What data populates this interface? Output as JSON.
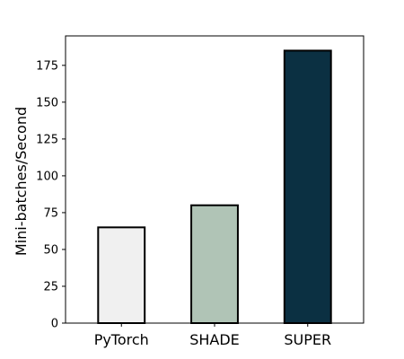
{
  "chart_data": {
    "type": "bar",
    "title": "",
    "xlabel": "",
    "ylabel": "Mini-batches/Second",
    "categories": [
      "PyTorch",
      "SHADE",
      "SUPER"
    ],
    "values": [
      65,
      80,
      185
    ],
    "bar_colors": [
      "#f0f0f0",
      "#b0c4b6",
      "#0b3042"
    ],
    "edge_color": "#000000",
    "ylim": [
      0,
      195
    ],
    "yticks": [
      0,
      25,
      50,
      75,
      100,
      125,
      150,
      175
    ],
    "grid": false,
    "legend": "none"
  }
}
